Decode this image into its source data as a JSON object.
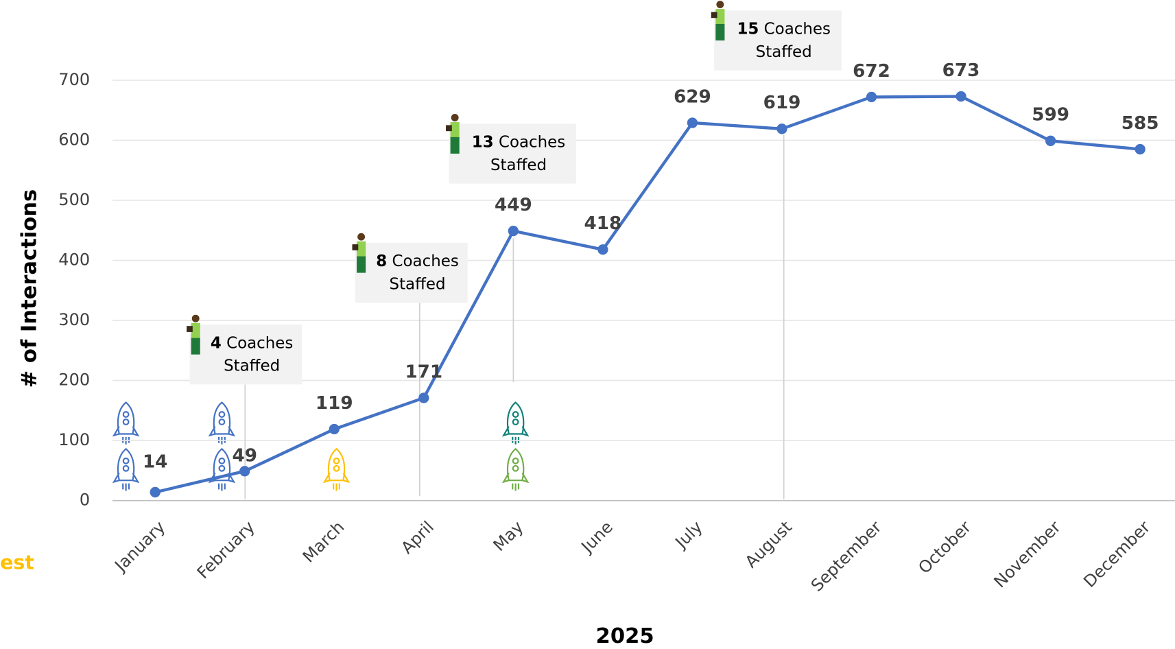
{
  "chart_data": {
    "type": "line",
    "y_label": "# of Interactions",
    "x_label": "2025",
    "categories": [
      "January",
      "February",
      "March",
      "April",
      "May",
      "June",
      "July",
      "August",
      "September",
      "October",
      "November",
      "December"
    ],
    "series": [
      {
        "color": "#4472c4",
        "values": [
          14,
          49,
          119,
          171,
          449,
          418,
          629,
          619,
          672,
          673,
          599,
          585
        ]
      }
    ],
    "ylim": [
      0,
      700
    ],
    "yticks": [
      0,
      100,
      200,
      300,
      400,
      500,
      600,
      700
    ],
    "grid": true,
    "annotations": [
      {
        "count": "4",
        "label": "Coaches",
        "label2": "Staffed"
      },
      {
        "count": "8",
        "label": "Coaches",
        "label2": "Staffed"
      },
      {
        "count": "13",
        "label": "Coaches",
        "label2": "Staffed"
      },
      {
        "count": "15",
        "label": "Coaches",
        "label2": "Staffed"
      }
    ],
    "side_note": "est"
  }
}
